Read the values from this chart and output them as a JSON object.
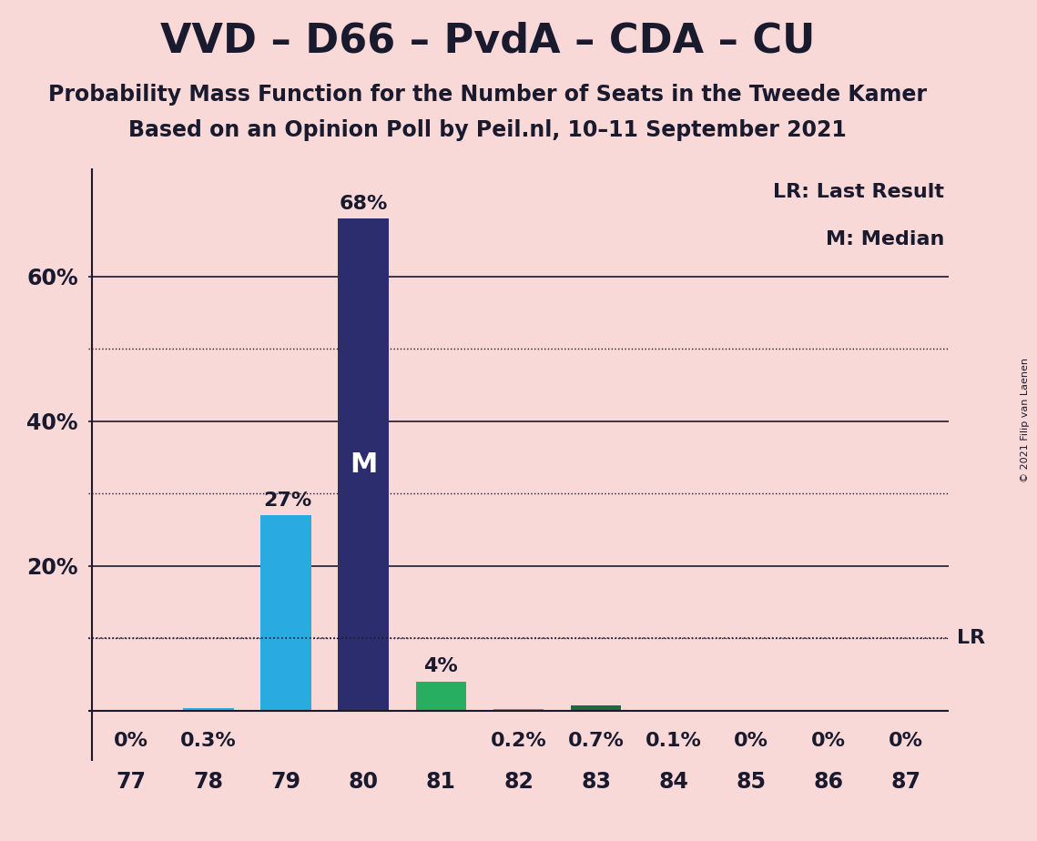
{
  "title": "VVD – D66 – PvdA – CDA – CU",
  "subtitle1": "Probability Mass Function for the Number of Seats in the Tweede Kamer",
  "subtitle2": "Based on an Opinion Poll by Peil.nl, 10–11 September 2021",
  "copyright": "© 2021 Filip van Laenen",
  "categories": [
    77,
    78,
    79,
    80,
    81,
    82,
    83,
    84,
    85,
    86,
    87
  ],
  "values": [
    0.0,
    0.3,
    27.0,
    68.0,
    4.0,
    0.2,
    0.7,
    0.1,
    0.0,
    0.0,
    0.0
  ],
  "bar_colors": [
    "#29ABE2",
    "#29ABE2",
    "#29ABE2",
    "#2B2D6E",
    "#27AE60",
    "#29ABE2",
    "#1A6B45",
    "#29ABE2",
    "#29ABE2",
    "#29ABE2",
    "#29ABE2"
  ],
  "bar_labels": [
    "0%",
    "0.3%",
    "27%",
    "68%",
    "4%",
    "0.2%",
    "0.7%",
    "0.1%",
    "0%",
    "0%",
    "0%"
  ],
  "median_bar_index": 3,
  "lr_value": 10.0,
  "lr_label": "LR",
  "legend_lr": "LR: Last Result",
  "legend_m": "M: Median",
  "median_label": "M",
  "background_color": "#F9D8D8",
  "bar_width": 0.65,
  "ylim": [
    0,
    75
  ],
  "solid_gridlines": [
    20,
    40,
    60
  ],
  "dotted_gridlines": [
    10,
    30,
    50
  ],
  "title_fontsize": 32,
  "subtitle_fontsize": 17,
  "label_fontsize": 16,
  "tick_fontsize": 17
}
